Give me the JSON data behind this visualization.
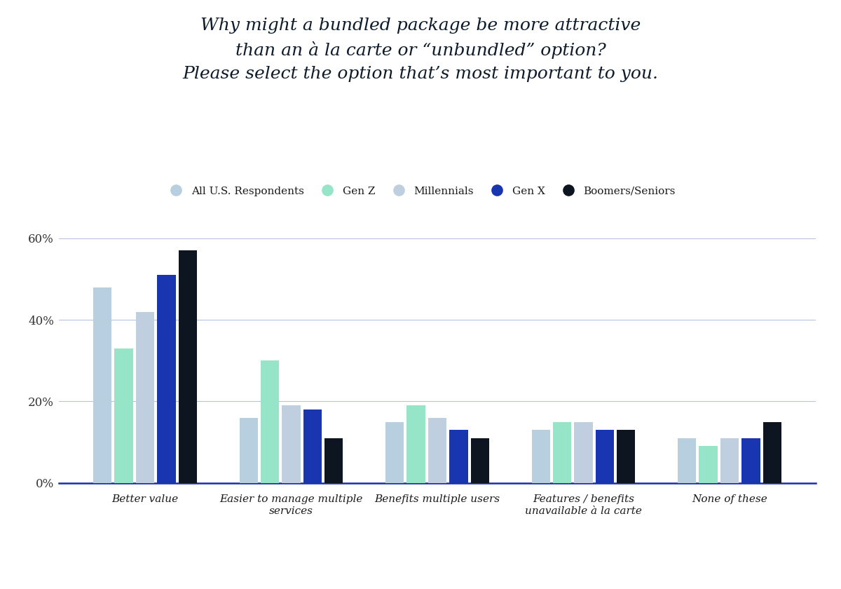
{
  "title_line1": "Why might a bundled package be more attractive",
  "title_line2": "than an à la carte or “unbundled” option?",
  "title_line3": "Please select the option that’s most important to you.",
  "categories": [
    "Better value",
    "Easier to manage multiple\nservices",
    "Benefits multiple users",
    "Features / benefits\nunavailable à la carte",
    "None of these"
  ],
  "series": [
    {
      "name": "All U.S. Respondents",
      "color": "#b8cfe0",
      "values": [
        48,
        16,
        15,
        13,
        11
      ]
    },
    {
      "name": "Gen Z",
      "color": "#96e5c8",
      "values": [
        33,
        30,
        19,
        15,
        9
      ]
    },
    {
      "name": "Millennials",
      "color": "#c0cfe0",
      "values": [
        42,
        19,
        16,
        15,
        11
      ]
    },
    {
      "name": "Gen X",
      "color": "#1a35b0",
      "values": [
        51,
        18,
        13,
        13,
        11
      ]
    },
    {
      "name": "Boomers/Seniors",
      "color": "#0d1520",
      "values": [
        57,
        11,
        11,
        13,
        15
      ]
    }
  ],
  "ylim": [
    0,
    65
  ],
  "yticks": [
    0,
    20,
    40,
    60
  ],
  "yticklabels": [
    "0%",
    "20%",
    "40%",
    "60%"
  ],
  "background_color": "#ffffff",
  "grid_color": "#8899cc",
  "axis_color": "#1a2faa"
}
